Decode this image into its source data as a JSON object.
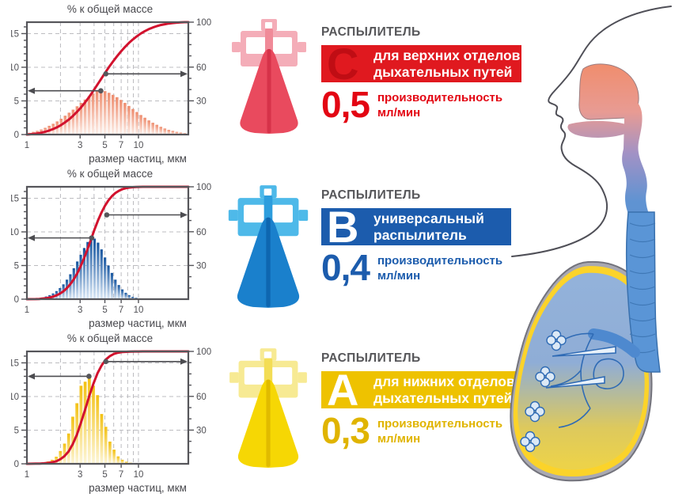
{
  "sections": [
    {
      "id": "C",
      "header": "РАСПЫЛИТЕЛЬ",
      "letter": "C",
      "line1": "для верхних отделов",
      "line2": "дыхательных путей",
      "rate": "0,5",
      "rate_label1": "производительность",
      "rate_label2": "мл/мин",
      "accent": "#e30613"
    },
    {
      "id": "B",
      "header": "РАСПЫЛИТЕЛЬ",
      "letter": "B",
      "line1": "универсальный",
      "line2": "распылитель",
      "rate": "0,4",
      "rate_label1": "производительность",
      "rate_label2": "мл/мин",
      "accent": "#1c5cad"
    },
    {
      "id": "A",
      "header": "РАСПЫЛИТЕЛЬ",
      "letter": "A",
      "line1": "для нижних отделов",
      "line2": "дыхательных путей",
      "rate": "0,3",
      "rate_label1": "производительность",
      "rate_label2": "мл/мин",
      "accent": "#eec200"
    }
  ],
  "chart_data": [
    {
      "id": "c",
      "type": "bar",
      "subtype": "histogram+cumulative-line",
      "title": "% к общей массе",
      "xlabel": "размер частиц, мкм",
      "x_scale": "log",
      "x_domain": [
        1,
        28
      ],
      "x_ticks": [
        1,
        3,
        5,
        7,
        10
      ],
      "y_left_ticks": [
        0,
        5,
        10,
        15
      ],
      "y_left_max": 16.7,
      "y_right_ticks": [
        30,
        60,
        100
      ],
      "y_right_max": 100,
      "grid_x": [
        2,
        3,
        4,
        5,
        6,
        7,
        8,
        9,
        10
      ],
      "grid_y": [
        5,
        10,
        15
      ],
      "bars": {
        "x_start": 1.05,
        "x_end": 26,
        "heights": [
          0.25,
          0.4,
          0.55,
          0.75,
          1.0,
          1.3,
          1.6,
          1.95,
          2.35,
          2.8,
          3.25,
          3.7,
          4.2,
          4.7,
          5.2,
          5.7,
          6.1,
          6.4,
          6.5,
          6.45,
          6.2,
          5.9,
          5.55,
          5.15,
          4.7,
          4.25,
          3.8,
          3.35,
          2.9,
          2.5,
          2.1,
          1.75,
          1.45,
          1.15,
          0.9,
          0.7,
          0.55,
          0.4,
          0.3,
          0.2
        ]
      },
      "curve": "cumulative-percent-of-bars",
      "annotations": [
        {
          "x": 4.6,
          "y_units": 6.5,
          "dir": "left"
        },
        {
          "x": 5.1,
          "pct": 54,
          "dir": "right"
        }
      ],
      "bar_color_top": "#ee8e70",
      "bar_color_bottom": "#fdf0ea",
      "curve_color": "#d2122e"
    },
    {
      "id": "b",
      "type": "bar",
      "subtype": "histogram+cumulative-line",
      "title": "% к общей массе",
      "xlabel": "размер частиц, мкм",
      "x_scale": "log",
      "x_domain": [
        1,
        28
      ],
      "x_ticks": [
        1,
        3,
        5,
        7,
        10
      ],
      "y_left_ticks": [
        0,
        5,
        10,
        15
      ],
      "y_left_max": 16.7,
      "y_right_ticks": [
        30,
        60,
        100
      ],
      "y_right_max": 100,
      "grid_x": [
        2,
        3,
        4,
        5,
        6,
        7,
        8,
        9,
        10
      ],
      "grid_y": [
        5,
        10,
        15
      ],
      "bars": {
        "x_start": 1.2,
        "x_end": 11,
        "heights": [
          0.1,
          0.15,
          0.25,
          0.4,
          0.6,
          0.85,
          1.2,
          1.65,
          2.2,
          2.9,
          3.7,
          4.6,
          5.6,
          6.6,
          7.6,
          8.5,
          9.1,
          9.0,
          8.4,
          7.4,
          6.2,
          5.0,
          3.9,
          2.9,
          2.1,
          1.45,
          0.95,
          0.6,
          0.35,
          0.2,
          0.12,
          0.07
        ]
      },
      "curve": "cumulative-percent-of-bars",
      "annotations": [
        {
          "x": 3.8,
          "y_units": 9.1,
          "dir": "left"
        },
        {
          "x": 5.2,
          "pct": 75,
          "dir": "right"
        }
      ],
      "bar_color_top": "#14549f",
      "bar_color_bottom": "#ddeaf7",
      "curve_color": "#d2122e"
    },
    {
      "id": "a",
      "type": "bar",
      "subtype": "histogram+cumulative-line",
      "title": "% к общей массе",
      "xlabel": "размер частиц, мкм",
      "x_scale": "log",
      "x_domain": [
        1,
        28
      ],
      "x_ticks": [
        1,
        3,
        5,
        7,
        10
      ],
      "y_left_ticks": [
        0,
        5,
        10,
        15
      ],
      "y_left_max": 16.7,
      "y_right_ticks": [
        30,
        60,
        100
      ],
      "y_right_max": 100,
      "grid_x": [
        2,
        3,
        4,
        5,
        6,
        7,
        8,
        9,
        10
      ],
      "grid_y": [
        5,
        10,
        15
      ],
      "bars": {
        "x_start": 1.1,
        "x_end": 13,
        "heights": [
          0.05,
          0.08,
          0.12,
          0.2,
          0.35,
          0.6,
          1.05,
          1.9,
          3.0,
          4.5,
          7.0,
          9.0,
          11.6,
          12.2,
          13.0,
          11.6,
          10.2,
          7.4,
          5.5,
          3.3,
          2.1,
          1.1,
          0.6,
          0.3,
          0.15,
          0.08,
          0.05,
          0.03,
          0.02,
          0.01
        ]
      },
      "curve": "cumulative-percent-of-bars",
      "annotations": [
        {
          "x": 3.6,
          "y_units": 13.0,
          "dir": "left"
        },
        {
          "x": 5.1,
          "pct": 91,
          "dir": "right"
        }
      ],
      "bar_color_top": "#f3c113",
      "bar_color_bottom": "#fdf6d8",
      "curve_color": "#d2122e"
    }
  ],
  "illustration": {
    "head_outline_color": "#4f4f57",
    "upper_airway_colors": [
      "#f08d6d",
      "#e89b93",
      "#a292c5",
      "#5f93d2"
    ],
    "trachea_color": "#5a95d6",
    "lung_rim_color": "#fbd32a",
    "lung_gray_color": "#a9a9b2",
    "lung_interior_colors": [
      "#93b2da",
      "#ecd24a"
    ],
    "bronchial_color": "#2f6bb5"
  }
}
